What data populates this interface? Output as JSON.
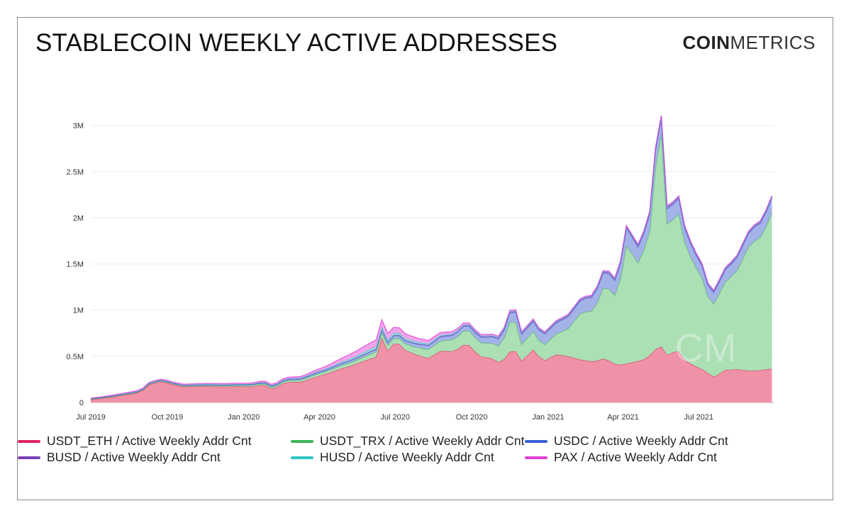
{
  "title": "STABLECOIN WEEKLY ACTIVE ADDRESSES",
  "logo": {
    "bold": "COIN",
    "light": "METRICS"
  },
  "chart_data": {
    "type": "area",
    "stacked": true,
    "grid": true,
    "legend_position": "bottom",
    "y_ticks": [
      {
        "value": 0,
        "label": "0"
      },
      {
        "value": 500000,
        "label": "0.5M"
      },
      {
        "value": 1000000,
        "label": "1M"
      },
      {
        "value": 1500000,
        "label": "1.5M"
      },
      {
        "value": 2000000,
        "label": "2M"
      },
      {
        "value": 2500000,
        "label": "2.5M"
      },
      {
        "value": 3000000,
        "label": "3M"
      }
    ],
    "x_ticks": [
      {
        "date": "2019-07-01",
        "label": "Jul 2019"
      },
      {
        "date": "2019-10-01",
        "label": "Oct 2019"
      },
      {
        "date": "2020-01-01",
        "label": "Jan 2020"
      },
      {
        "date": "2020-04-01",
        "label": "Apr 2020"
      },
      {
        "date": "2020-07-01",
        "label": "Jul 2020"
      },
      {
        "date": "2020-10-01",
        "label": "Oct 2020"
      },
      {
        "date": "2021-01-01",
        "label": "Jan 2021"
      },
      {
        "date": "2021-04-01",
        "label": "Apr 2021"
      },
      {
        "date": "2021-07-01",
        "label": "Jul 2021"
      }
    ],
    "x_range": [
      "2019-07-01",
      "2021-09-30"
    ],
    "y_range": [
      0,
      3400000
    ],
    "series": [
      {
        "name": "USDT_ETH / Active Weekly Addr Cnt",
        "color": "#e0245e",
        "fill": "#ef8ca2",
        "points": [
          [
            "2019-07-01",
            30000
          ],
          [
            "2019-07-20",
            50000
          ],
          [
            "2019-08-10",
            80000
          ],
          [
            "2019-08-30",
            110000
          ],
          [
            "2019-09-10",
            200000
          ],
          [
            "2019-09-25",
            230000
          ],
          [
            "2019-10-05",
            200000
          ],
          [
            "2019-10-20",
            170000
          ],
          [
            "2019-11-15",
            175000
          ],
          [
            "2019-12-10",
            170000
          ],
          [
            "2019-12-25",
            175000
          ],
          [
            "2020-01-10",
            170000
          ],
          [
            "2020-01-25",
            195000
          ],
          [
            "2020-02-05",
            140000
          ],
          [
            "2020-02-20",
            220000
          ],
          [
            "2020-03-10",
            220000
          ],
          [
            "2020-03-25",
            270000
          ],
          [
            "2020-04-10",
            310000
          ],
          [
            "2020-04-25",
            360000
          ],
          [
            "2020-05-10",
            400000
          ],
          [
            "2020-05-25",
            450000
          ],
          [
            "2020-06-10",
            500000
          ],
          [
            "2020-06-15",
            700000
          ],
          [
            "2020-06-25",
            500000
          ],
          [
            "2020-07-01",
            700000
          ],
          [
            "2020-07-10",
            580000
          ],
          [
            "2020-07-25",
            520000
          ],
          [
            "2020-08-10",
            480000
          ],
          [
            "2020-08-25",
            560000
          ],
          [
            "2020-09-10",
            550000
          ],
          [
            "2020-09-25",
            650000
          ],
          [
            "2020-10-10",
            500000
          ],
          [
            "2020-10-25",
            480000
          ],
          [
            "2020-11-05",
            420000
          ],
          [
            "2020-11-20",
            600000
          ],
          [
            "2020-11-30",
            450000
          ],
          [
            "2020-12-15",
            580000
          ],
          [
            "2020-12-25",
            440000
          ],
          [
            "2021-01-10",
            520000
          ],
          [
            "2021-01-25",
            500000
          ],
          [
            "2021-02-10",
            460000
          ],
          [
            "2021-02-25",
            440000
          ],
          [
            "2021-03-10",
            480000
          ],
          [
            "2021-03-25",
            400000
          ],
          [
            "2021-04-10",
            430000
          ],
          [
            "2021-04-25",
            460000
          ],
          [
            "2021-05-05",
            520000
          ],
          [
            "2021-05-15",
            630000
          ],
          [
            "2021-05-25",
            500000
          ],
          [
            "2021-06-05",
            580000
          ],
          [
            "2021-06-15",
            450000
          ],
          [
            "2021-06-25",
            400000
          ],
          [
            "2021-07-05",
            360000
          ],
          [
            "2021-07-15",
            300000
          ],
          [
            "2021-07-20",
            270000
          ],
          [
            "2021-08-01",
            350000
          ],
          [
            "2021-08-15",
            360000
          ],
          [
            "2021-09-01",
            340000
          ],
          [
            "2021-09-15",
            350000
          ],
          [
            "2021-09-30",
            370000
          ]
        ]
      },
      {
        "name": "USDT_TRX / Active Weekly Addr Cnt",
        "color": "#3fb45a",
        "fill": "#a6ddb0",
        "points": [
          [
            "2019-07-01",
            5000
          ],
          [
            "2019-10-01",
            8000
          ],
          [
            "2020-01-01",
            12000
          ],
          [
            "2020-03-01",
            20000
          ],
          [
            "2020-04-15",
            30000
          ],
          [
            "2020-05-15",
            40000
          ],
          [
            "2020-06-15",
            60000
          ],
          [
            "2020-07-05",
            60000
          ],
          [
            "2020-07-25",
            80000
          ],
          [
            "2020-08-15",
            100000
          ],
          [
            "2020-09-10",
            130000
          ],
          [
            "2020-09-25",
            160000
          ],
          [
            "2020-10-15",
            150000
          ],
          [
            "2020-11-05",
            180000
          ],
          [
            "2020-11-20",
            370000
          ],
          [
            "2020-11-30",
            180000
          ],
          [
            "2020-12-15",
            200000
          ],
          [
            "2020-12-25",
            160000
          ],
          [
            "2021-01-10",
            220000
          ],
          [
            "2021-01-25",
            300000
          ],
          [
            "2021-02-10",
            520000
          ],
          [
            "2021-02-25",
            550000
          ],
          [
            "2021-03-10",
            800000
          ],
          [
            "2021-03-25",
            730000
          ],
          [
            "2021-04-05",
            1280000
          ],
          [
            "2021-04-20",
            1050000
          ],
          [
            "2021-05-05",
            1390000
          ],
          [
            "2021-05-15",
            2550000
          ],
          [
            "2021-05-25",
            1300000
          ],
          [
            "2021-06-05",
            1550000
          ],
          [
            "2021-06-15",
            1250000
          ],
          [
            "2021-06-25",
            1100000
          ],
          [
            "2021-07-05",
            990000
          ],
          [
            "2021-07-15",
            760000
          ],
          [
            "2021-07-20",
            800000
          ],
          [
            "2021-08-01",
            950000
          ],
          [
            "2021-08-15",
            1050000
          ],
          [
            "2021-09-01",
            1380000
          ],
          [
            "2021-09-15",
            1450000
          ],
          [
            "2021-09-30",
            1750000
          ]
        ]
      },
      {
        "name": "USDC / Active Weekly Addr Cnt",
        "color": "#3b5fd6",
        "fill": "#9eaee6",
        "points": [
          [
            "2019-07-01",
            5000
          ],
          [
            "2019-10-01",
            6000
          ],
          [
            "2020-01-01",
            8000
          ],
          [
            "2020-04-01",
            15000
          ],
          [
            "2020-06-01",
            25000
          ],
          [
            "2020-07-01",
            30000
          ],
          [
            "2020-08-10",
            40000
          ],
          [
            "2020-09-25",
            50000
          ],
          [
            "2020-10-15",
            60000
          ],
          [
            "2020-11-05",
            80000
          ],
          [
            "2020-11-20",
            110000
          ],
          [
            "2020-12-15",
            110000
          ],
          [
            "2021-01-10",
            120000
          ],
          [
            "2021-01-25",
            130000
          ],
          [
            "2021-02-10",
            140000
          ],
          [
            "2021-02-25",
            150000
          ],
          [
            "2021-03-10",
            170000
          ],
          [
            "2021-03-25",
            160000
          ],
          [
            "2021-04-05",
            190000
          ],
          [
            "2021-04-20",
            170000
          ],
          [
            "2021-05-05",
            190000
          ],
          [
            "2021-05-15",
            180000
          ],
          [
            "2021-05-25",
            160000
          ],
          [
            "2021-06-05",
            170000
          ],
          [
            "2021-06-15",
            150000
          ],
          [
            "2021-06-25",
            140000
          ],
          [
            "2021-07-05",
            130000
          ],
          [
            "2021-07-15",
            120000
          ],
          [
            "2021-08-01",
            130000
          ],
          [
            "2021-08-15",
            140000
          ],
          [
            "2021-09-01",
            150000
          ],
          [
            "2021-09-30",
            160000
          ]
        ]
      },
      {
        "name": "BUSD / Active Weekly Addr Cnt",
        "color": "#7b3fb8",
        "fill": "#b07ad6",
        "points": [
          [
            "2019-07-01",
            2000
          ],
          [
            "2020-01-01",
            3000
          ],
          [
            "2020-06-01",
            5000
          ],
          [
            "2020-10-01",
            8000
          ],
          [
            "2021-01-01",
            10000
          ],
          [
            "2021-04-01",
            15000
          ],
          [
            "2021-05-15",
            20000
          ],
          [
            "2021-07-01",
            15000
          ],
          [
            "2021-09-30",
            15000
          ]
        ]
      },
      {
        "name": "HUSD / Active Weekly Addr Cnt",
        "color": "#2ec4c4",
        "fill": "#8fdede",
        "points": [
          [
            "2019-07-01",
            2000
          ],
          [
            "2020-01-01",
            3000
          ],
          [
            "2020-04-01",
            8000
          ],
          [
            "2020-06-15",
            25000
          ],
          [
            "2020-08-01",
            15000
          ],
          [
            "2020-10-01",
            8000
          ],
          [
            "2021-01-01",
            5000
          ],
          [
            "2021-09-30",
            4000
          ]
        ]
      },
      {
        "name": "PAX / Active Weekly Addr Cnt",
        "color": "#e040d8",
        "fill": "#f0a0ea",
        "points": [
          [
            "2019-07-01",
            3000
          ],
          [
            "2019-10-01",
            8000
          ],
          [
            "2020-01-01",
            10000
          ],
          [
            "2020-03-15",
            15000
          ],
          [
            "2020-04-15",
            30000
          ],
          [
            "2020-05-10",
            50000
          ],
          [
            "2020-06-01",
            70000
          ],
          [
            "2020-06-15",
            80000
          ],
          [
            "2020-07-01",
            60000
          ],
          [
            "2020-08-01",
            40000
          ],
          [
            "2020-09-01",
            25000
          ],
          [
            "2020-10-01",
            15000
          ],
          [
            "2021-01-01",
            8000
          ],
          [
            "2021-09-30",
            5000
          ]
        ]
      }
    ]
  },
  "legend": [
    {
      "label": "USDT_ETH / Active Weekly Addr Cnt",
      "color": "#e0245e"
    },
    {
      "label": "USDT_TRX / Active Weekly Addr Cnt",
      "color": "#3fb45a"
    },
    {
      "label": "USDC / Active Weekly Addr Cnt",
      "color": "#3b5fd6"
    },
    {
      "label": "BUSD / Active Weekly Addr Cnt",
      "color": "#7b3fb8"
    },
    {
      "label": "HUSD / Active Weekly Addr Cnt",
      "color": "#2ec4c4"
    },
    {
      "label": "PAX / Active Weekly Addr Cnt",
      "color": "#e040d8"
    }
  ]
}
